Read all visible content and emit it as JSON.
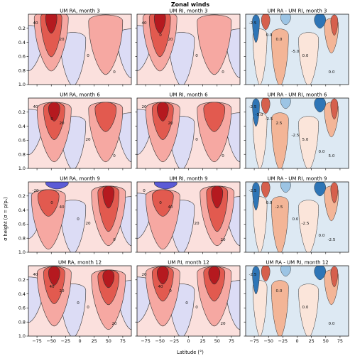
{
  "figure_title": "Zonal winds",
  "colors": {
    "positive_light": "#fbe0dd",
    "positive_mid": "#f6a8a2",
    "positive_strong": "#e25a4f",
    "positive_max": "#b5191f",
    "negative_light": "#dcdcf5",
    "negative_mid": "#b8b8ec",
    "negative_strong": "#5b5bd6",
    "diff_neg_light": "#dde9f3",
    "diff_neg_mid": "#9cc4e4",
    "diff_neg_strong": "#2e75b6",
    "diff_pos_light": "#fbe5da",
    "diff_pos_mid": "#f3b597",
    "diff_pos_strong": "#d6604d",
    "contour_line": "#333333"
  },
  "chart_data": {
    "type": "heatmap",
    "title": "Zonal winds",
    "xlabel": "Latitude (°)",
    "ylabel": "σ height (σ = p/pₛ)",
    "x_ticks": [
      "−75",
      "−50",
      "−25",
      "0",
      "25",
      "50",
      "75"
    ],
    "x_tick_values": [
      -75,
      -50,
      -25,
      0,
      25,
      50,
      75
    ],
    "y_ticks": [
      "0.2",
      "0.4",
      "0.6",
      "0.8",
      "1.0"
    ],
    "y_tick_values": [
      0.2,
      0.4,
      0.6,
      0.8,
      1.0
    ],
    "xlim": [
      -90,
      90
    ],
    "ylim": [
      1.0,
      0.0
    ],
    "panels": [
      {
        "title": "UM RA, month 3",
        "kind": "field",
        "jets": [
          {
            "lat": -50,
            "sigma": 0.05,
            "max": 60
          },
          {
            "lat": 45,
            "sigma": 0.1,
            "max": 18
          }
        ],
        "labels": [
          "40",
          "20",
          "0",
          "0"
        ]
      },
      {
        "title": "UM RI, month 3",
        "kind": "field",
        "jets": [
          {
            "lat": -50,
            "sigma": 0.05,
            "max": 60
          },
          {
            "lat": 45,
            "sigma": 0.1,
            "max": 18
          }
        ],
        "labels": [
          "40",
          "20",
          "0",
          "0",
          "0"
        ]
      },
      {
        "title": "UM RA - UM RI, month 3",
        "kind": "diff",
        "labels": [
          "-2.5",
          "0.0",
          "0.0",
          "0.0",
          "0.0",
          "-5.0"
        ]
      },
      {
        "title": "UM RA, month 6",
        "kind": "field",
        "jets": [
          {
            "lat": -45,
            "sigma": 0.15,
            "max": 45
          },
          {
            "lat": 45,
            "sigma": 0.15,
            "max": 30
          }
        ],
        "labels": [
          "40",
          "20",
          "20",
          "0",
          "0"
        ]
      },
      {
        "title": "UM RI, month 6",
        "kind": "field",
        "jets": [
          {
            "lat": -45,
            "sigma": 0.15,
            "max": 45
          },
          {
            "lat": 45,
            "sigma": 0.15,
            "max": 30
          }
        ],
        "labels": [
          "20",
          "20",
          "0",
          "0"
        ]
      },
      {
        "title": "UM RA - UM RI, month 6",
        "kind": "diff",
        "labels": [
          "-2.5",
          "2.5",
          "5.0",
          "5.0",
          "-2.5",
          "-2.5",
          "0.0",
          "-5.0"
        ]
      },
      {
        "title": "UM RA, month 9",
        "kind": "field",
        "jets": [
          {
            "lat": -55,
            "sigma": 0.2,
            "max": 25
          },
          {
            "lat": 50,
            "sigma": 0.15,
            "max": 60
          }
        ],
        "labels": [
          "-20",
          "40",
          "20",
          "0",
          "0",
          "0"
        ]
      },
      {
        "title": "UM RI, month 9",
        "kind": "field",
        "jets": [
          {
            "lat": -45,
            "sigma": 0.2,
            "max": 25
          },
          {
            "lat": 50,
            "sigma": 0.15,
            "max": 60
          }
        ],
        "labels": [
          "0",
          "40",
          "20",
          "20",
          "0"
        ]
      },
      {
        "title": "UM RA - UM RI, month 9",
        "kind": "diff",
        "labels": [
          "-2.5",
          "-2.5",
          "-2.5",
          "-2.5",
          "0.0",
          "0.0",
          "0.0"
        ]
      },
      {
        "title": "UM RA, month 12",
        "kind": "field",
        "jets": [
          {
            "lat": -45,
            "sigma": 0.1,
            "max": 45
          },
          {
            "lat": 50,
            "sigma": 0.15,
            "max": 40
          }
        ],
        "labels": [
          "40",
          "20",
          "0",
          "20",
          "40",
          "0"
        ]
      },
      {
        "title": "UM RI, month 12",
        "kind": "field",
        "jets": [
          {
            "lat": -45,
            "sigma": 0.1,
            "max": 40
          },
          {
            "lat": 45,
            "sigma": 0.1,
            "max": 40
          }
        ],
        "labels": [
          "20",
          "0",
          "0",
          "20",
          "40",
          "0"
        ]
      },
      {
        "title": "UM RA - UM RI, month 12",
        "kind": "diff",
        "labels": [
          "-2.5",
          "0.0",
          "0.0",
          "0.0"
        ]
      }
    ]
  }
}
